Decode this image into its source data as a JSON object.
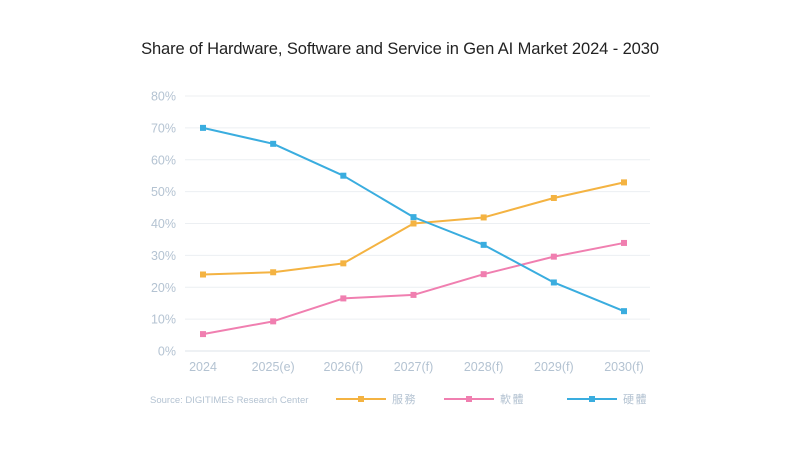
{
  "chart_data": {
    "type": "line",
    "title": "Share of Hardware, Software and Service in Gen AI Market 2024 - 2030",
    "categories": [
      "2024",
      "2025(e)",
      "2026(f)",
      "2027(f)",
      "2028(f)",
      "2029(f)",
      "2030(f)"
    ],
    "y_ticks": [
      "0%",
      "10%",
      "20%",
      "30%",
      "40%",
      "50%",
      "60%",
      "70%",
      "80%"
    ],
    "ylim": [
      0,
      80
    ],
    "grid": true,
    "legend_position": "bottom",
    "source": "Source: DIGITIMES Research Center",
    "series": [
      {
        "name": "服務",
        "color": "#f4b342",
        "values": [
          24,
          24.7,
          27.5,
          40,
          41.9,
          48,
          52.9
        ]
      },
      {
        "name": "軟體",
        "color": "#f07fb0",
        "values": [
          5.3,
          9.3,
          16.5,
          17.6,
          24.1,
          29.6,
          33.9
        ]
      },
      {
        "name": "硬體",
        "color": "#3aaddf",
        "values": [
          70,
          65,
          55,
          42,
          33.3,
          21.5,
          12.5
        ]
      }
    ]
  }
}
